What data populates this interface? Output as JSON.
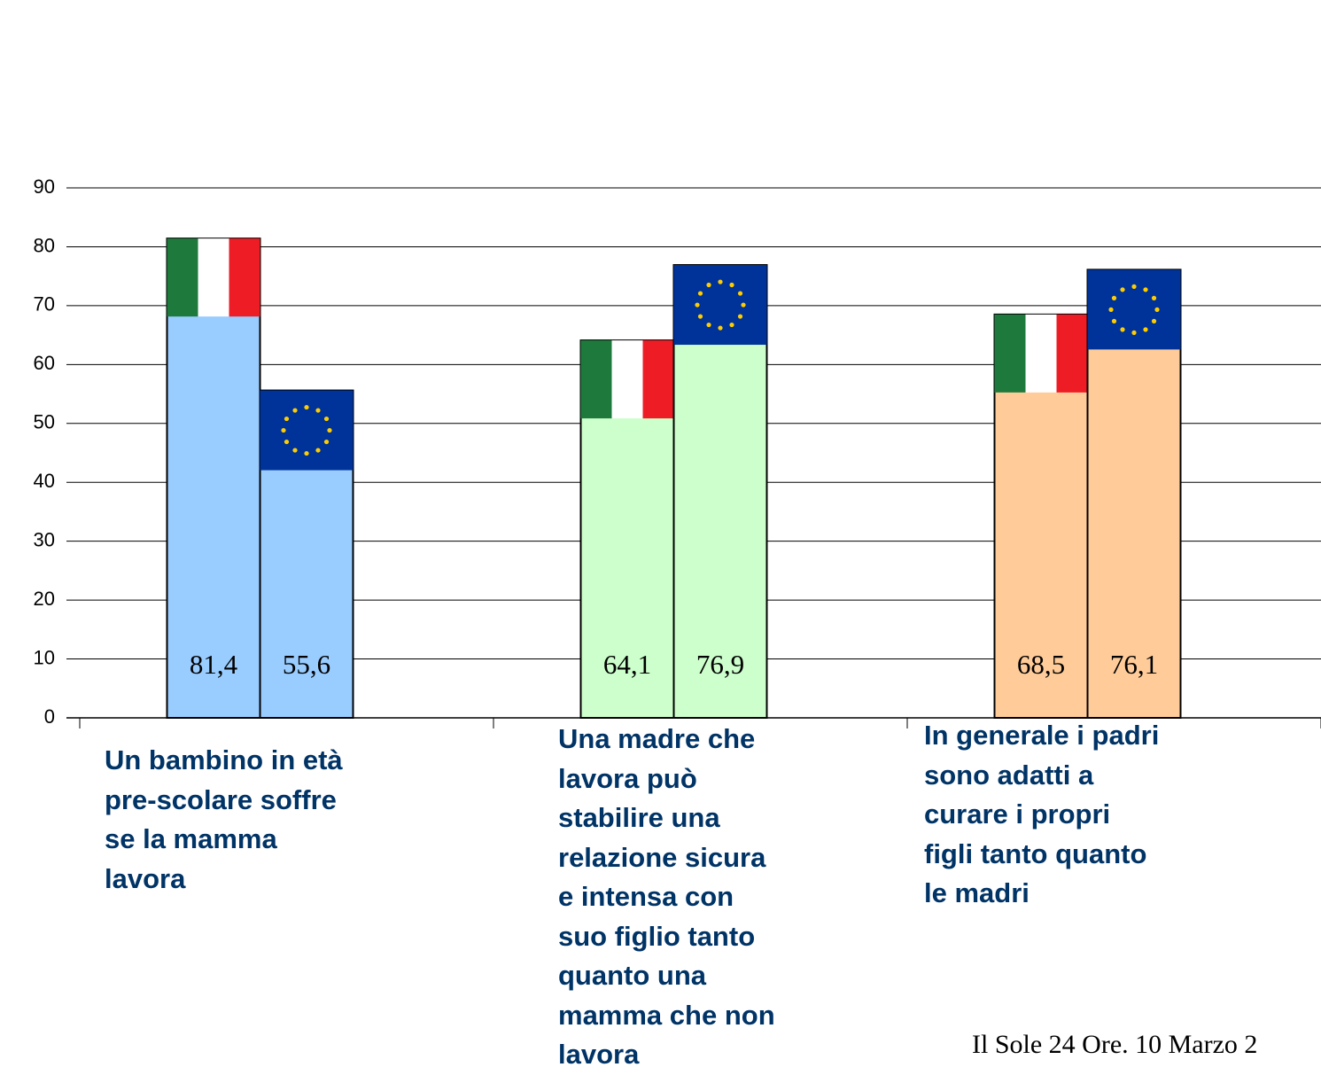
{
  "chart_data": {
    "type": "bar",
    "categories": [
      "Un bambino in età\npre-scolare soffre\nse la mamma\nlavora",
      "Una madre che\nlavora può\nstabilire una\nrelazione sicura\ne intensa con\nsuo figlio tanto\nquanto una\nmamma che non\nlavora",
      "In generale i padri\nsono adatti a\ncurare i propri\nfigli tanto quanto\nle madri"
    ],
    "category_colors": [
      "#99ccff",
      "#ccffcc",
      "#ffcc99"
    ],
    "series": [
      {
        "values": [
          81.4,
          64.1,
          68.5
        ],
        "value_labels": [
          "81,4",
          "64,1",
          "68,5"
        ]
      },
      {
        "values": [
          55.6,
          76.9,
          76.1
        ],
        "value_labels": [
          "55,6",
          "76,9",
          "76,1"
        ]
      }
    ],
    "ylim": [
      0,
      90
    ],
    "yticks": [
      0,
      10,
      20,
      30,
      40,
      50,
      60,
      70,
      80,
      90
    ],
    "grid": true,
    "source": "Il Sole 24 Ore. 10 Marzo 2"
  }
}
